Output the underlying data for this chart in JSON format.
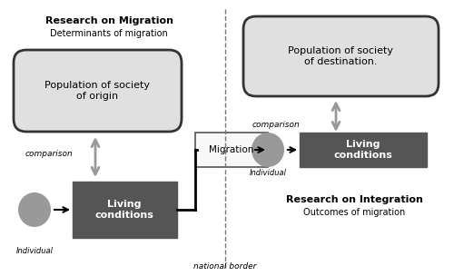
{
  "fig_width": 5.0,
  "fig_height": 3.04,
  "dpi": 100,
  "bg_color": "#ffffff",
  "title_left": "Research on Migration",
  "subtitle_left": "Determinants of migration",
  "title_right": "Research on Integration",
  "subtitle_right": "Outcomes of migration",
  "bottom_label": "national border",
  "box_origin_text": "Population of society\nof origin",
  "box_destination_text": "Population of society\nof destination.",
  "box_living_left_text": "Living\nconditions",
  "box_living_right_text": "Living\nconditions",
  "migration_box_text": "Migration",
  "comparison_left": "comparison",
  "comparison_right": "comparison",
  "individual_left": "Individual",
  "individual_right": "Individual",
  "color_light_box": "#e0e0e0",
  "color_dark_box": "#555555",
  "color_circle": "#999999",
  "color_arrow_gray": "#999999",
  "color_black": "#000000",
  "color_dashed_line": "#777777",
  "color_migration_box_face": "#f8f8f8",
  "color_migration_box_edge": "#555555"
}
